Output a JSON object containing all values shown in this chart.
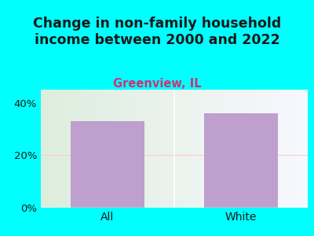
{
  "title": "Change in non-family household\nincome between 2000 and 2022",
  "subtitle": "Greenview, IL",
  "categories": [
    "All",
    "White"
  ],
  "values": [
    33,
    36
  ],
  "bar_color": "#bf9fce",
  "title_color": "#1a1a1a",
  "subtitle_color": "#cc3377",
  "background_color": "#00ffff",
  "grad_left": "#ddeedd",
  "grad_right": "#f8f8ff",
  "grid_color": "#ffcccc",
  "ylim": [
    0,
    45
  ],
  "yticks": [
    0,
    20,
    40
  ],
  "ytick_labels": [
    "0%",
    "20%",
    "40%"
  ],
  "title_fontsize": 12.5,
  "subtitle_fontsize": 10.5,
  "tick_fontsize": 9.5,
  "label_fontsize": 10
}
